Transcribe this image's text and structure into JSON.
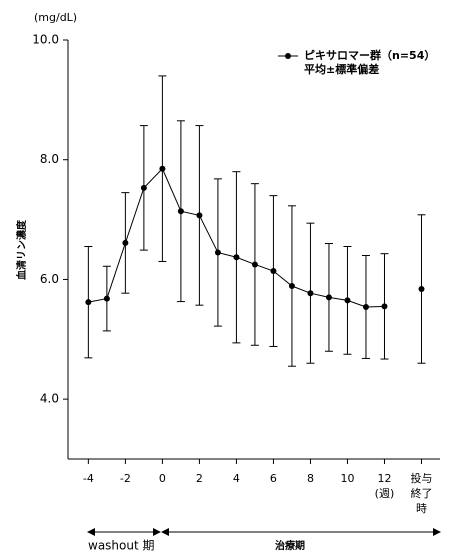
{
  "chart_data": {
    "type": "line",
    "y_unit": "(mg/dL)",
    "y_label": "血清リン濃度",
    "x": [
      -4,
      -3,
      -2,
      -1,
      0,
      1,
      2,
      3,
      4,
      5,
      6,
      7,
      8,
      9,
      10,
      11,
      12
    ],
    "series": [
      {
        "name": "ピキサロマー群（n=54）",
        "color": "#000000",
        "values": [
          5.62,
          5.68,
          6.61,
          7.53,
          7.85,
          7.14,
          7.07,
          6.45,
          6.37,
          6.25,
          6.14,
          5.89,
          5.77,
          5.7,
          5.65,
          5.54,
          5.55
        ],
        "errors": [
          0.93,
          0.54,
          0.84,
          1.04,
          1.55,
          1.51,
          1.5,
          1.23,
          1.43,
          1.35,
          1.26,
          1.34,
          1.17,
          0.9,
          0.9,
          0.86,
          0.88
        ]
      }
    ],
    "post_dose": {
      "x": 14,
      "value": 5.84,
      "error": 1.24
    },
    "legend_note": "平均±標準偏差",
    "legend_position": "upper right",
    "xlim": [
      -5.1,
      15
    ],
    "xticks": [
      -4,
      -2,
      0,
      2,
      4,
      6,
      8,
      10,
      12,
      {
        "value": 14,
        "label": "投与終了時"
      }
    ],
    "x_unit": "(週)",
    "ylim": [
      3,
      10
    ],
    "yticks": [
      {
        "value": 4,
        "label": "4.0"
      },
      {
        "value": 6,
        "label": "6.0"
      },
      {
        "value": 8,
        "label": "8.0"
      },
      {
        "value": 10,
        "label": "10.0"
      }
    ],
    "periods": [
      "washout 期",
      "治療期"
    ]
  }
}
